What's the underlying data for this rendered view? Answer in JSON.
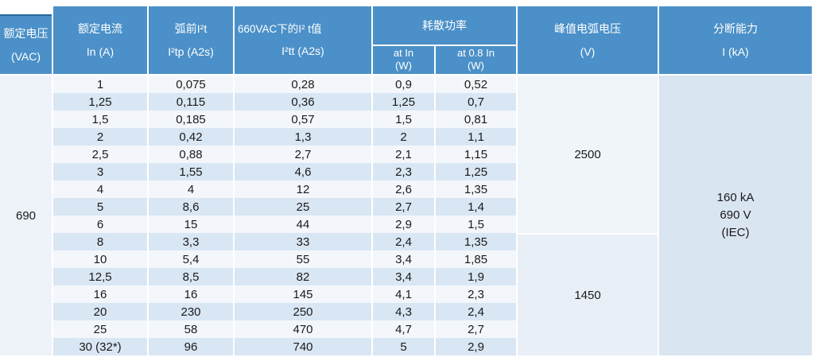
{
  "table": {
    "headers": {
      "rated_voltage": {
        "line1": "额定电压",
        "line2": "(VAC)"
      },
      "rated_current": {
        "line1": "额定电流",
        "line2": "In (A)"
      },
      "prearc_i2t": {
        "line1": "弧前I²t",
        "line2": "I²tp (A2s)"
      },
      "i2t_660vac": {
        "line1": "660VAC下的I² t值",
        "line2": "I²tt (A2s)"
      },
      "power_dissipation": {
        "label": "耗散功率",
        "at_in": {
          "line1": "at  In",
          "line2": "(W)"
        },
        "at_08in": {
          "line1": "at 0.8  In",
          "line2": "(W)"
        }
      },
      "peak_arc_voltage": {
        "line1": "峰值电弧电压",
        "line2": "(V)"
      },
      "breaking_capacity": {
        "line1": "分断能力",
        "line2": "I (kA)"
      }
    },
    "rated_voltage_value": "690",
    "arc_voltage_groups": [
      {
        "value": "2500",
        "row_span": 9
      },
      {
        "value": "1450",
        "row_span": 7
      }
    ],
    "breaking_capacity_value": {
      "line1": "160 kA",
      "line2": "690 V",
      "line3": "(IEC)"
    },
    "rows": [
      {
        "in": "1",
        "i2tp": "0,075",
        "i2tt": "0,28",
        "p_in": "0,9",
        "p_08in": "0,52"
      },
      {
        "in": "1,25",
        "i2tp": "0,115",
        "i2tt": "0,36",
        "p_in": "1,25",
        "p_08in": "0,7"
      },
      {
        "in": "1,5",
        "i2tp": "0,185",
        "i2tt": "0,57",
        "p_in": "1,5",
        "p_08in": "0,81"
      },
      {
        "in": "2",
        "i2tp": "0,42",
        "i2tt": "1,3",
        "p_in": "2",
        "p_08in": "1,1"
      },
      {
        "in": "2,5",
        "i2tp": "0,88",
        "i2tt": "2,7",
        "p_in": "2,1",
        "p_08in": "1,15"
      },
      {
        "in": "3",
        "i2tp": "1,55",
        "i2tt": "4,6",
        "p_in": "2,3",
        "p_08in": "1,25"
      },
      {
        "in": "4",
        "i2tp": "4",
        "i2tt": "12",
        "p_in": "2,6",
        "p_08in": "1,35"
      },
      {
        "in": "5",
        "i2tp": "8,6",
        "i2tt": "25",
        "p_in": "2,7",
        "p_08in": "1,4"
      },
      {
        "in": "6",
        "i2tp": "15",
        "i2tt": "44",
        "p_in": "2,9",
        "p_08in": "1,5"
      },
      {
        "in": "8",
        "i2tp": "3,3",
        "i2tt": "33",
        "p_in": "2,4",
        "p_08in": "1,35"
      },
      {
        "in": "10",
        "i2tp": "5,4",
        "i2tt": "55",
        "p_in": "3,4",
        "p_08in": "1,85"
      },
      {
        "in": "12,5",
        "i2tp": "8,5",
        "i2tt": "82",
        "p_in": "3,4",
        "p_08in": "1,9"
      },
      {
        "in": "16",
        "i2tp": "16",
        "i2tt": "145",
        "p_in": "4,1",
        "p_08in": "2,3"
      },
      {
        "in": "20",
        "i2tp": "230",
        "i2tt": "250",
        "p_in": "4,3",
        "p_08in": "2,4"
      },
      {
        "in": "25",
        "i2tp": "58",
        "i2tt": "470",
        "p_in": "4,7",
        "p_08in": "2,7"
      },
      {
        "in": "30 (32*)",
        "i2tp": "96",
        "i2tt": "740",
        "p_in": "5",
        "p_08in": "2,9"
      }
    ],
    "colors": {
      "header_blue": "#4b90c8",
      "header_top_border": "#28659f",
      "stripe_blue": "#d9e6f4",
      "stripe_white": "#f3f7fb",
      "merged_voltage_bg": "#eef2f9",
      "merged_arc1_bg": "#f0f5fa",
      "merged_arc2_bg": "#e9eff6",
      "merged_break_bg": "#dae5f2"
    }
  }
}
